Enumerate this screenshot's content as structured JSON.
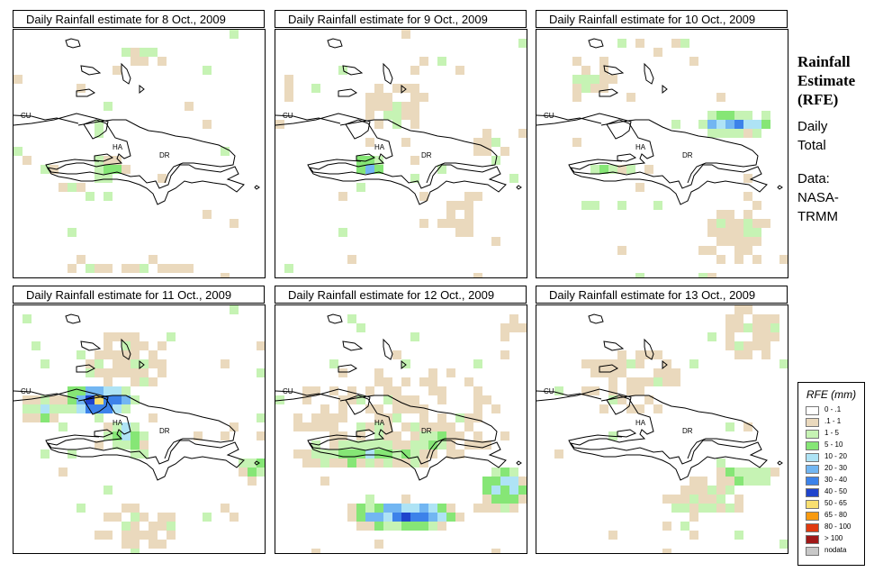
{
  "panels": [
    {
      "title": "Daily Rainfall estimate for  8 Oct., 2009"
    },
    {
      "title": "Daily Rainfall estimate for  9 Oct., 2009"
    },
    {
      "title": "Daily Rainfall estimate for  10 Oct., 2009"
    },
    {
      "title": "Daily Rainfall estimate for  11 Oct., 2009"
    },
    {
      "title": "Daily Rainfall estimate for  12 Oct., 2009"
    },
    {
      "title": "Daily Rainfall estimate for  13 Oct., 2009"
    }
  ],
  "map_labels": {
    "cuba": "CU",
    "haiti": "HA",
    "dominican_republic": "DR"
  },
  "side": {
    "title_lines": [
      "Rainfall",
      "Estimate",
      "(RFE)"
    ],
    "period_lines": [
      "Daily",
      "Total"
    ],
    "source_lines": [
      "Data:",
      "NASA-",
      "TRMM"
    ]
  },
  "legend": {
    "title": "RFE (mm)",
    "classes": [
      {
        "label": "0 - .1",
        "color": "#ffffff"
      },
      {
        "label": ".1 - 1",
        "color": "#ead9bd"
      },
      {
        "label": "1 - 5",
        "color": "#c6f3b4"
      },
      {
        "label": "5 - 10",
        "color": "#86e676"
      },
      {
        "label": "10 - 20",
        "color": "#aee3f5"
      },
      {
        "label": "20 - 30",
        "color": "#72b6f2"
      },
      {
        "label": "30 - 40",
        "color": "#3c82ea"
      },
      {
        "label": "40 - 50",
        "color": "#1f44cc"
      },
      {
        "label": "50 - 65",
        "color": "#f8df70"
      },
      {
        "label": "65 - 80",
        "color": "#f89a10"
      },
      {
        "label": "80 - 100",
        "color": "#e03a10"
      },
      {
        "label": "> 100",
        "color": "#a01818"
      },
      {
        "label": "nodata",
        "color": "#c8c8c8"
      }
    ]
  }
}
